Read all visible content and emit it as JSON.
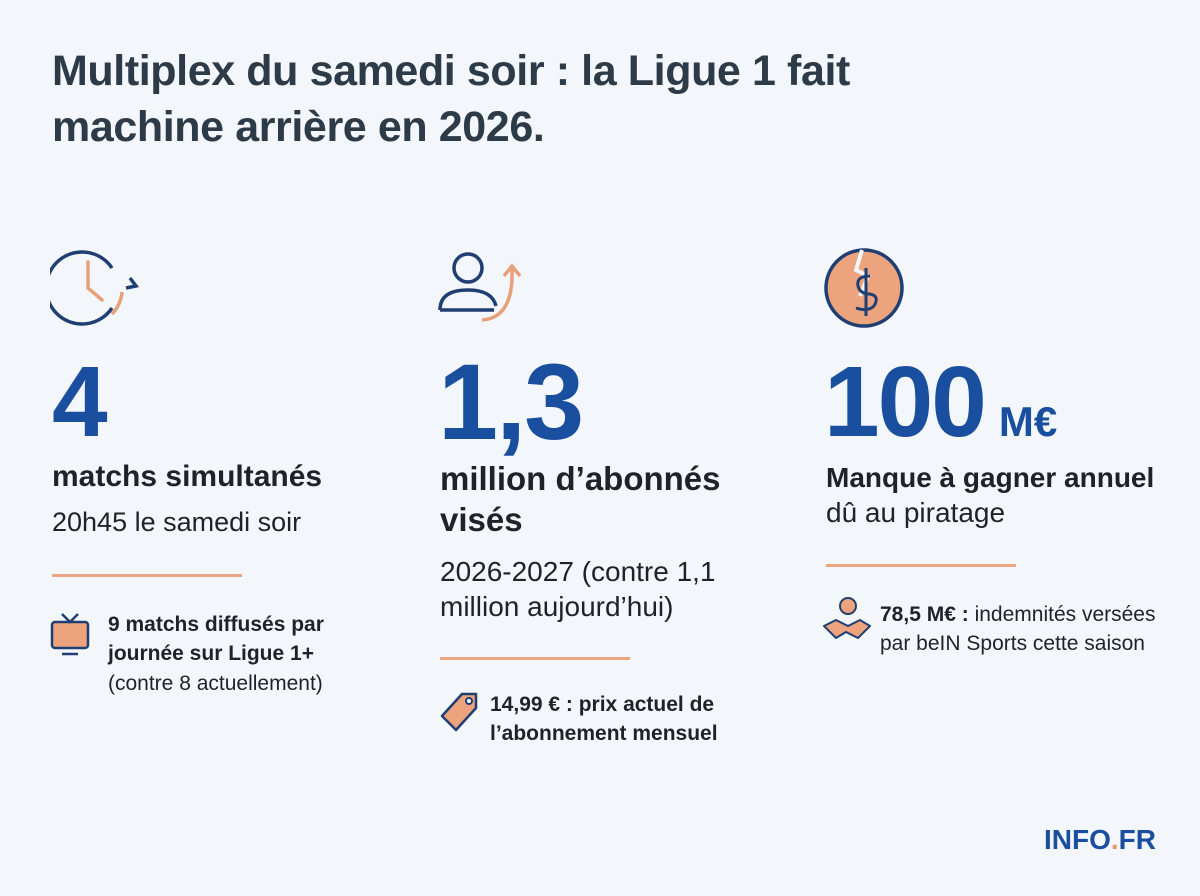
{
  "title": "Multiplex du samedi soir : la Ligue 1 fait machine arrière en 2026.",
  "columns": [
    {
      "figure": "4",
      "label": "matchs simultanés",
      "detail": "20h45 le samedi soir",
      "note_bold": "9 matchs diffusés par journée sur Ligue 1+",
      "note": "(contre 8 actuellement)"
    },
    {
      "figure": "1,3",
      "label": "million d’abonnés visés",
      "detail": "2026-2027 (contre 1,1 million aujourd’hui)",
      "note_bold": "14,99 € : prix actuel de l’abonnement mensuel"
    },
    {
      "figure": "100",
      "unit": "M€",
      "label": "Manque à gagner annuel",
      "label_rest": "dû au piratage",
      "note_bold": "78,5 M€ :",
      "note": "indemnités versées par beIN Sports cette saison"
    }
  ],
  "brand": {
    "name": "INFO",
    "dot": ".",
    "suffix": "FR"
  }
}
